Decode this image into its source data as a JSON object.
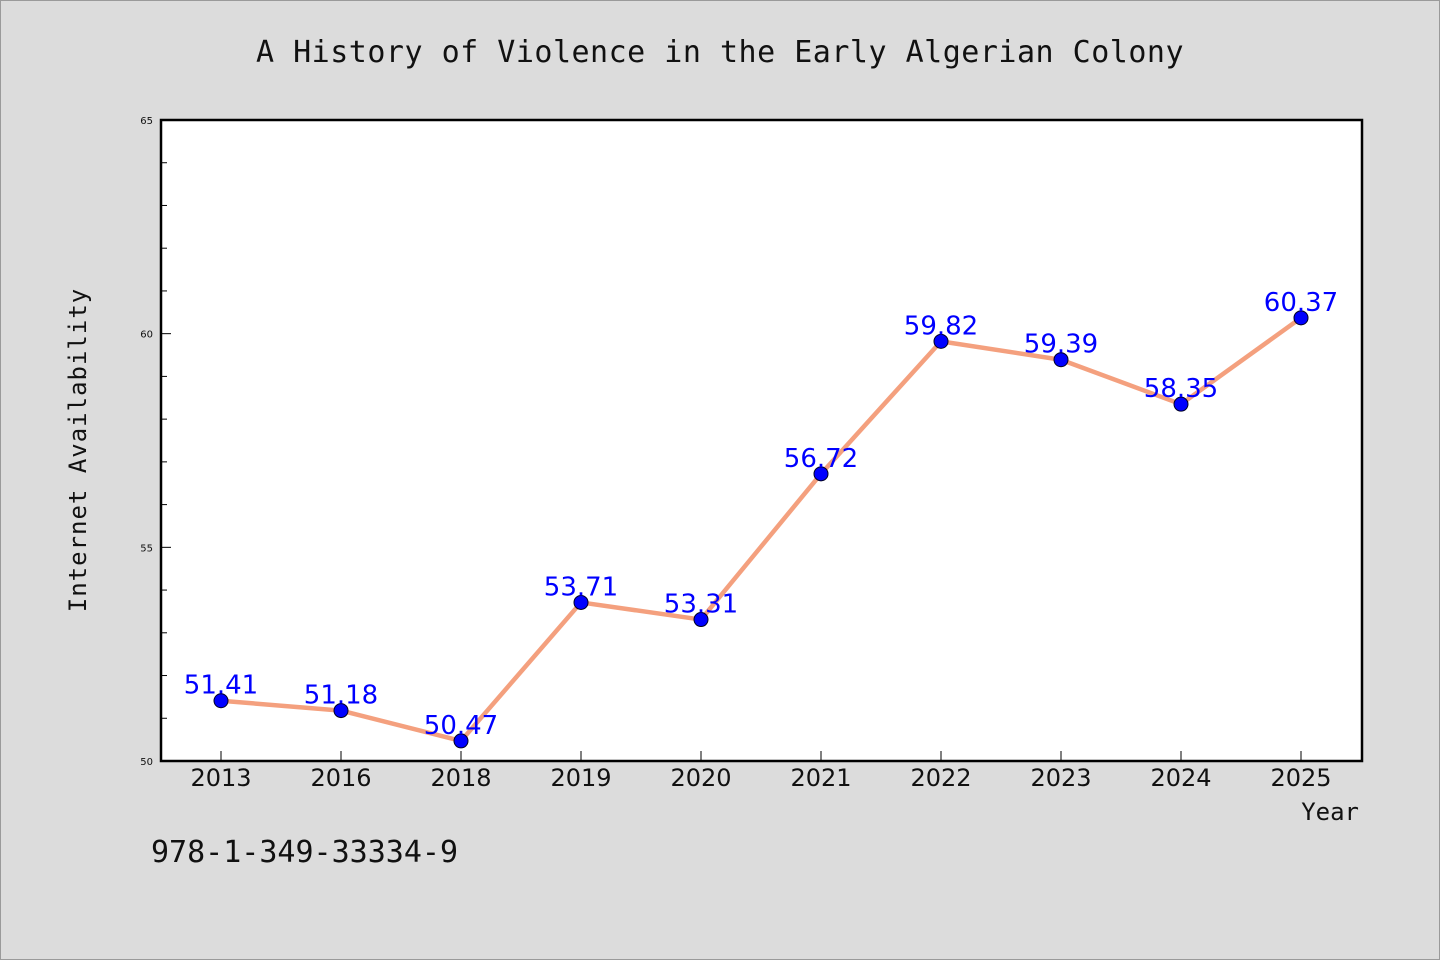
{
  "chart_data": {
    "type": "line",
    "title": "A History of Violence in the Early Algerian Colony",
    "xlabel": "Year",
    "ylabel": "Internet Availability",
    "categories": [
      "2013",
      "2016",
      "2018",
      "2019",
      "2020",
      "2021",
      "2022",
      "2023",
      "2024",
      "2025"
    ],
    "series": [
      {
        "values": [
          51.41,
          51.18,
          50.47,
          53.71,
          53.31,
          56.72,
          59.82,
          59.39,
          58.35,
          60.37
        ],
        "line_color": "#f4a07e",
        "marker_color": "#0000ff"
      }
    ],
    "data_labels": [
      "51.41",
      "51.18",
      "50.47",
      "53.71",
      "53.31",
      "56.72",
      "59.82",
      "59.39",
      "58.35",
      "60.37"
    ],
    "ylim": [
      50,
      65
    ],
    "yticks": [
      50,
      55,
      60,
      65
    ],
    "ytick_labels": [
      "50",
      "55",
      "60",
      "65"
    ],
    "grid": false,
    "legend": false
  },
  "footer_text": "978-1-349-33334-9",
  "colors": {
    "background": "#dcdcdc",
    "plot_background": "#ffffff",
    "line": "#f4a07e",
    "marker": "#0000ff",
    "data_label": "#0000ff"
  }
}
